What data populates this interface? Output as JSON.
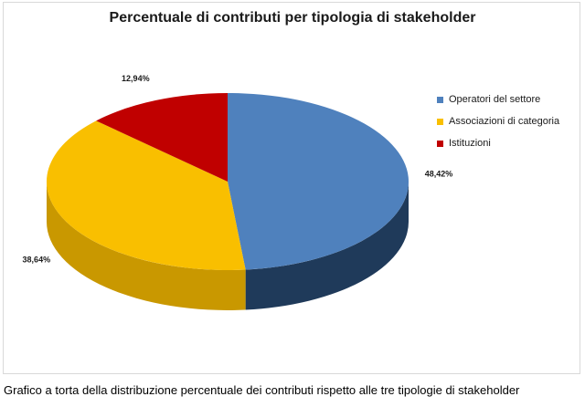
{
  "chart_data": {
    "type": "pie",
    "title": "Percentuale di contributi per tipologia di stakeholder",
    "categories": [
      "Operatori del settore",
      "Associazioni di categoria",
      "Istituzioni"
    ],
    "values": [
      48.42,
      38.64,
      12.94
    ],
    "labels": [
      "48,42%",
      "38,64%",
      "12,94%"
    ],
    "colors": [
      "#4f81bd",
      "#f9bf00",
      "#c00000"
    ],
    "side_colors": [
      "#1f3a5a",
      "#c99800",
      "#7a0000"
    ],
    "legend_placement": "right",
    "style": "3d"
  },
  "caption": "Grafico a torta della distribuzione percentuale dei contributi rispetto alle tre tipologie di stakeholder"
}
